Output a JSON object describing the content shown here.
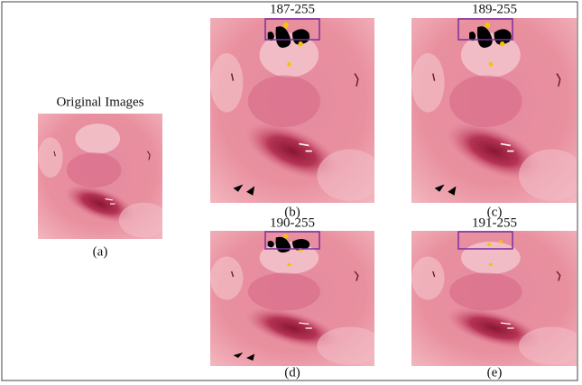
{
  "figure": {
    "original_title": "Original Images",
    "original_caption": "(a)",
    "panels": [
      {
        "title": "187-255",
        "caption": "(b)"
      },
      {
        "title": "189-255",
        "caption": "(c)"
      },
      {
        "title": "190-255",
        "caption": "(d)"
      },
      {
        "title": "191-255",
        "caption": "(e)"
      }
    ]
  }
}
